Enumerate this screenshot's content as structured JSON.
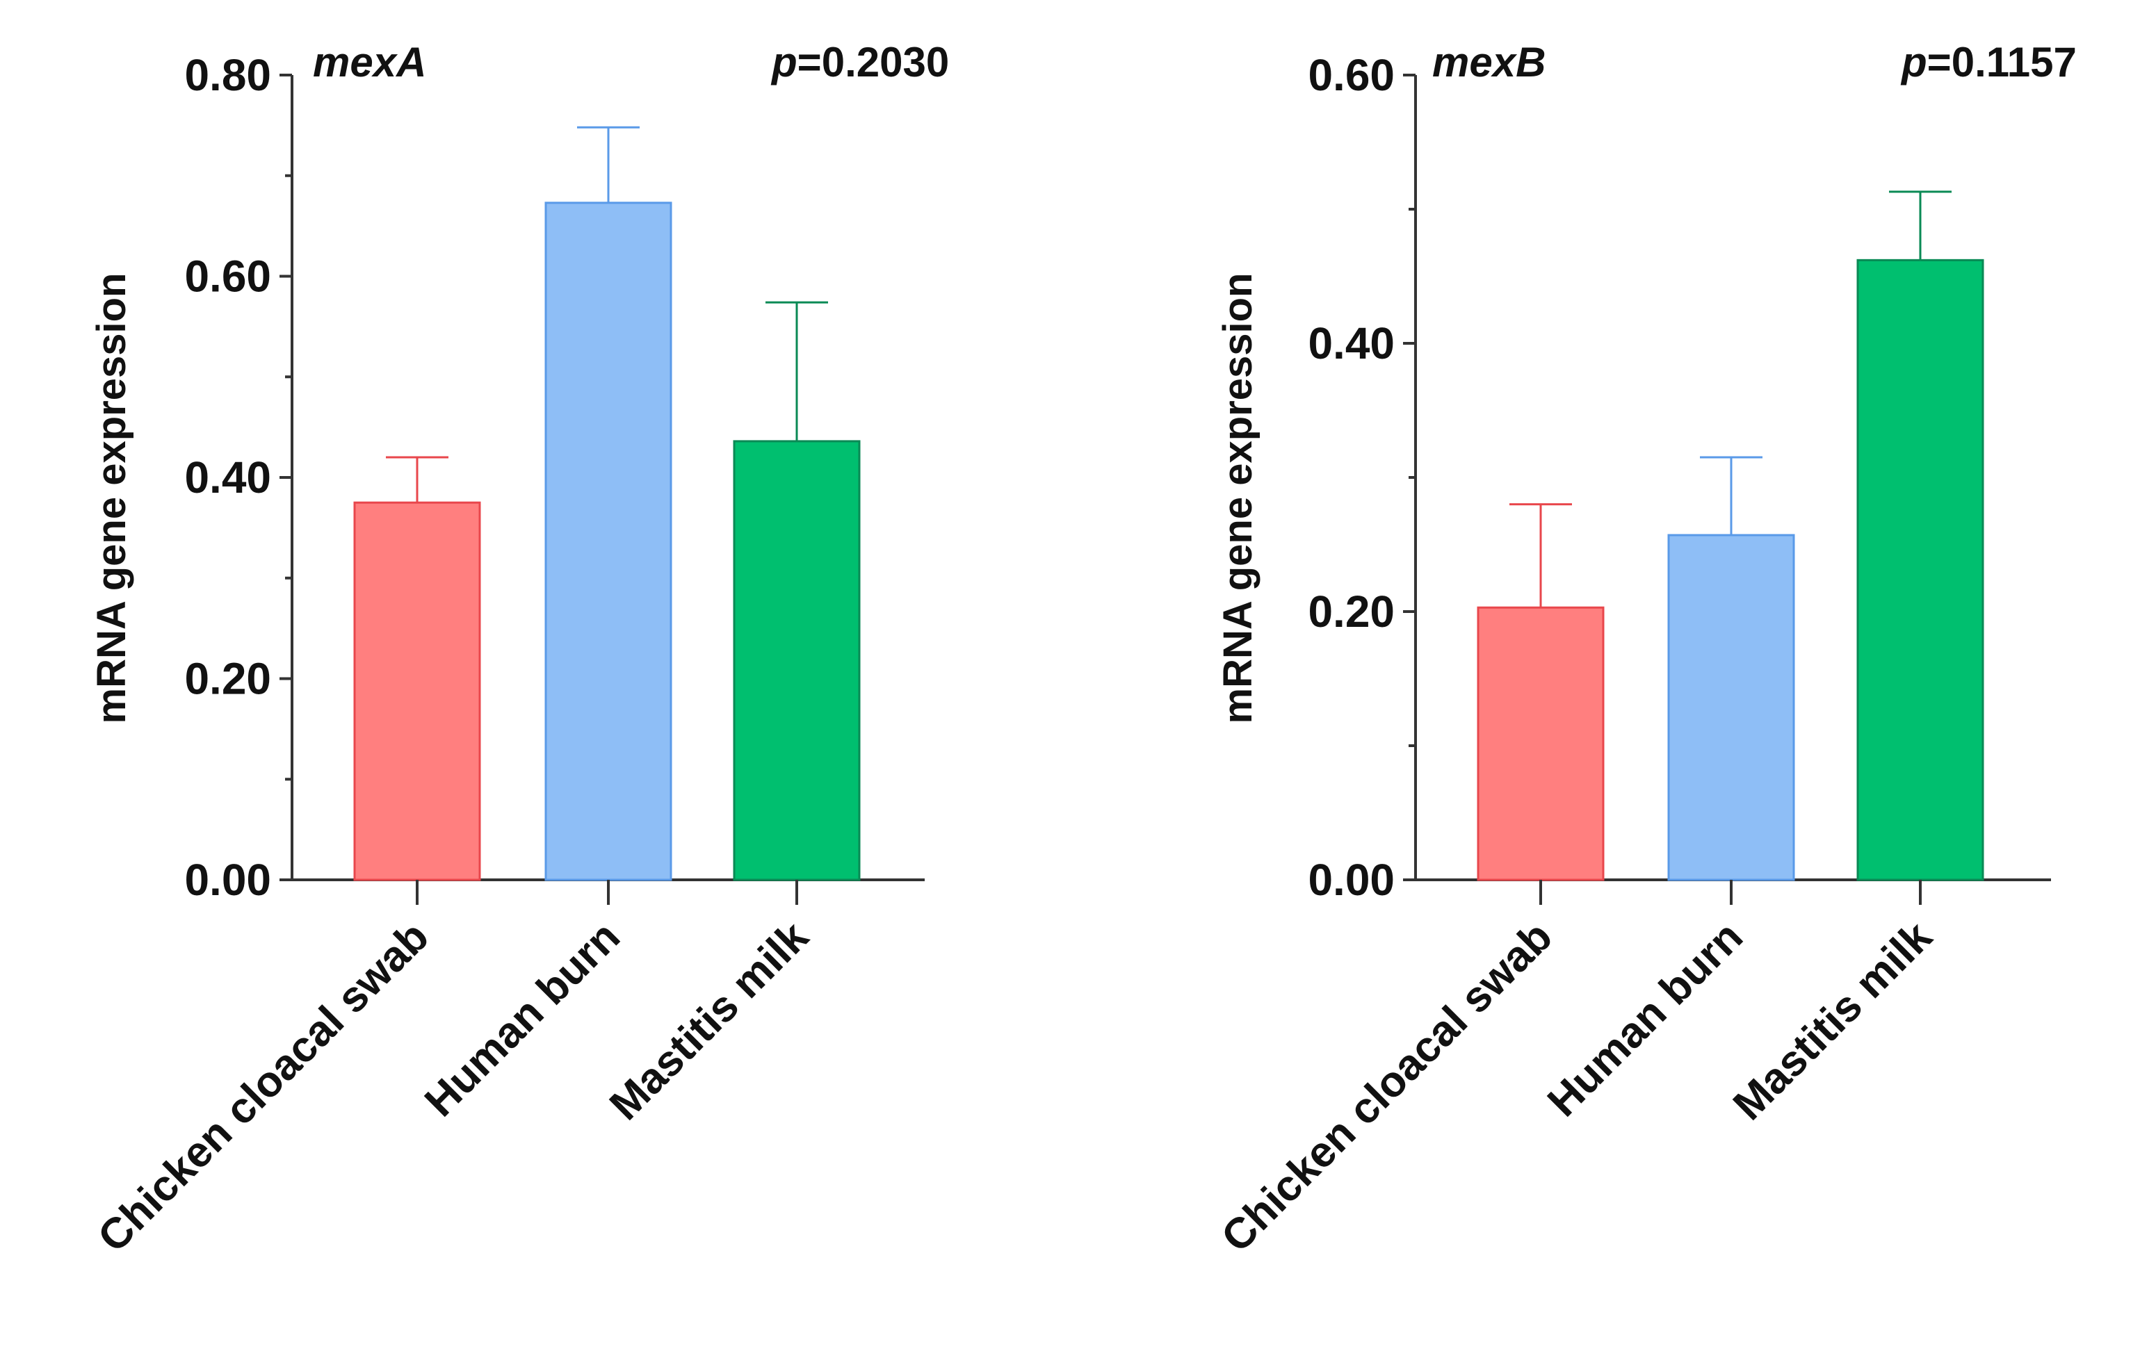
{
  "chart_data": [
    {
      "type": "bar",
      "gene": "mexA",
      "p_label": "p",
      "p_value": "=0.2030",
      "ylabel": "mRNA gene expression",
      "ylim": [
        0,
        0.8
      ],
      "yticks": [
        0.0,
        0.2,
        0.4,
        0.6,
        0.8
      ],
      "ytick_labels": [
        "0.00",
        "0.20",
        "0.40",
        "0.60",
        "0.80"
      ],
      "categories": [
        "Chicken cloacal swab",
        "Human burn",
        "Mastitis milk"
      ],
      "values": [
        0.375,
        0.673,
        0.436
      ],
      "errors": [
        0.045,
        0.075,
        0.138
      ],
      "colors": [
        "#FF7F7F",
        "#8EBEF6",
        "#00BF6F"
      ],
      "edge_colors": [
        "#E8474C",
        "#5A9AE8",
        "#0A8A55"
      ]
    },
    {
      "type": "bar",
      "gene": "mexB",
      "p_label": "p",
      "p_value": "=0.1157",
      "ylabel": "mRNA gene expression",
      "ylim": [
        0,
        0.6
      ],
      "yticks": [
        0.0,
        0.2,
        0.4,
        0.6
      ],
      "ytick_labels": [
        "0.00",
        "0.20",
        "0.40",
        "0.60"
      ],
      "categories": [
        "Chicken cloacal swab",
        "Human burn",
        "Mastitis milk"
      ],
      "values": [
        0.203,
        0.257,
        0.462
      ],
      "errors": [
        0.077,
        0.058,
        0.051
      ],
      "colors": [
        "#FF7F7F",
        "#8EBEF6",
        "#00BF6F"
      ],
      "edge_colors": [
        "#E8474C",
        "#5A9AE8",
        "#0A8A55"
      ]
    }
  ]
}
